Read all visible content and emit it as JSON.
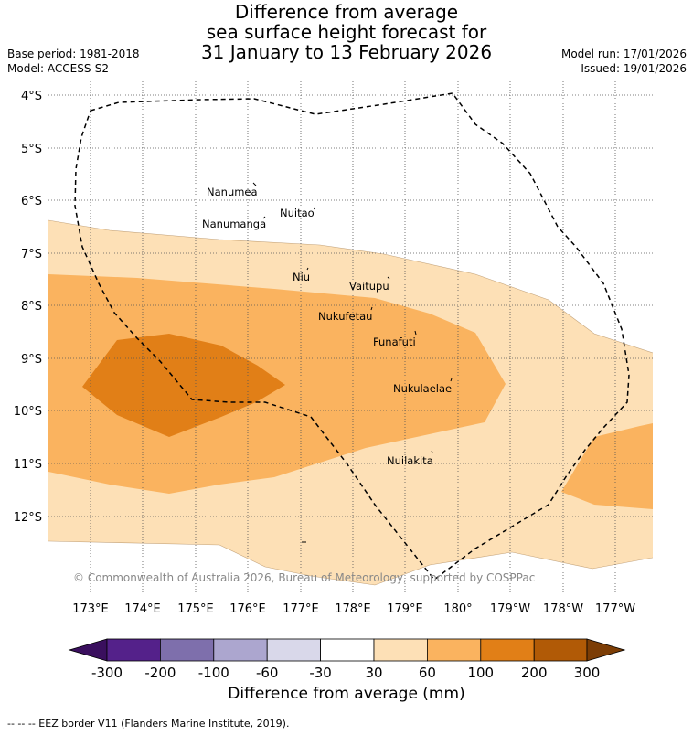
{
  "title_lines": [
    "Difference from average",
    "sea surface height forecast for",
    "31 January to 13 February 2026"
  ],
  "base_period": "Base period: 1981-2018",
  "model": "Model: ACCESS-S2",
  "model_run": "Model run: 17/01/2026",
  "issued": "Issued: 19/01/2026",
  "copyright": "© Commonwealth of Australia 2026, Bureau of Meteorology, supported by COSPPac",
  "lat_labels": [
    "4°S",
    "5°S",
    "6°S",
    "7°S",
    "8°S",
    "9°S",
    "10°S",
    "11°S",
    "12°S"
  ],
  "lon_labels": [
    "173°E",
    "174°E",
    "175°E",
    "176°E",
    "177°E",
    "178°E",
    "179°E",
    "180°",
    "179°W",
    "178°W",
    "177°W"
  ],
  "islands": [
    "Nanumea",
    "Nuitao",
    "Nanumanga",
    "Niu",
    "Vaitupu",
    "Nukufetau",
    "Funafuti",
    "Nukulaelae",
    "Nuilakita"
  ],
  "colorbar": {
    "ticks": [
      "-300",
      "-200",
      "-100",
      "-60",
      "-30",
      "30",
      "60",
      "100",
      "200",
      "300"
    ],
    "colors": [
      "#3a0f5e",
      "#54218a",
      "#7e6fac",
      "#aca6cf",
      "#d9d8ea",
      "#ffffff",
      "#fde0b6",
      "#fab35f",
      "#e17f17",
      "#b15a06",
      "#7c3d05"
    ],
    "title": "Difference from average (mm)"
  },
  "footer": "--  --  -- EEZ border V11 (Flanders Marine Institute, 2019).",
  "colors": {
    "band_light": "#fde0b6",
    "band_mid": "#fab35f",
    "band_dark": "#e17f17"
  }
}
